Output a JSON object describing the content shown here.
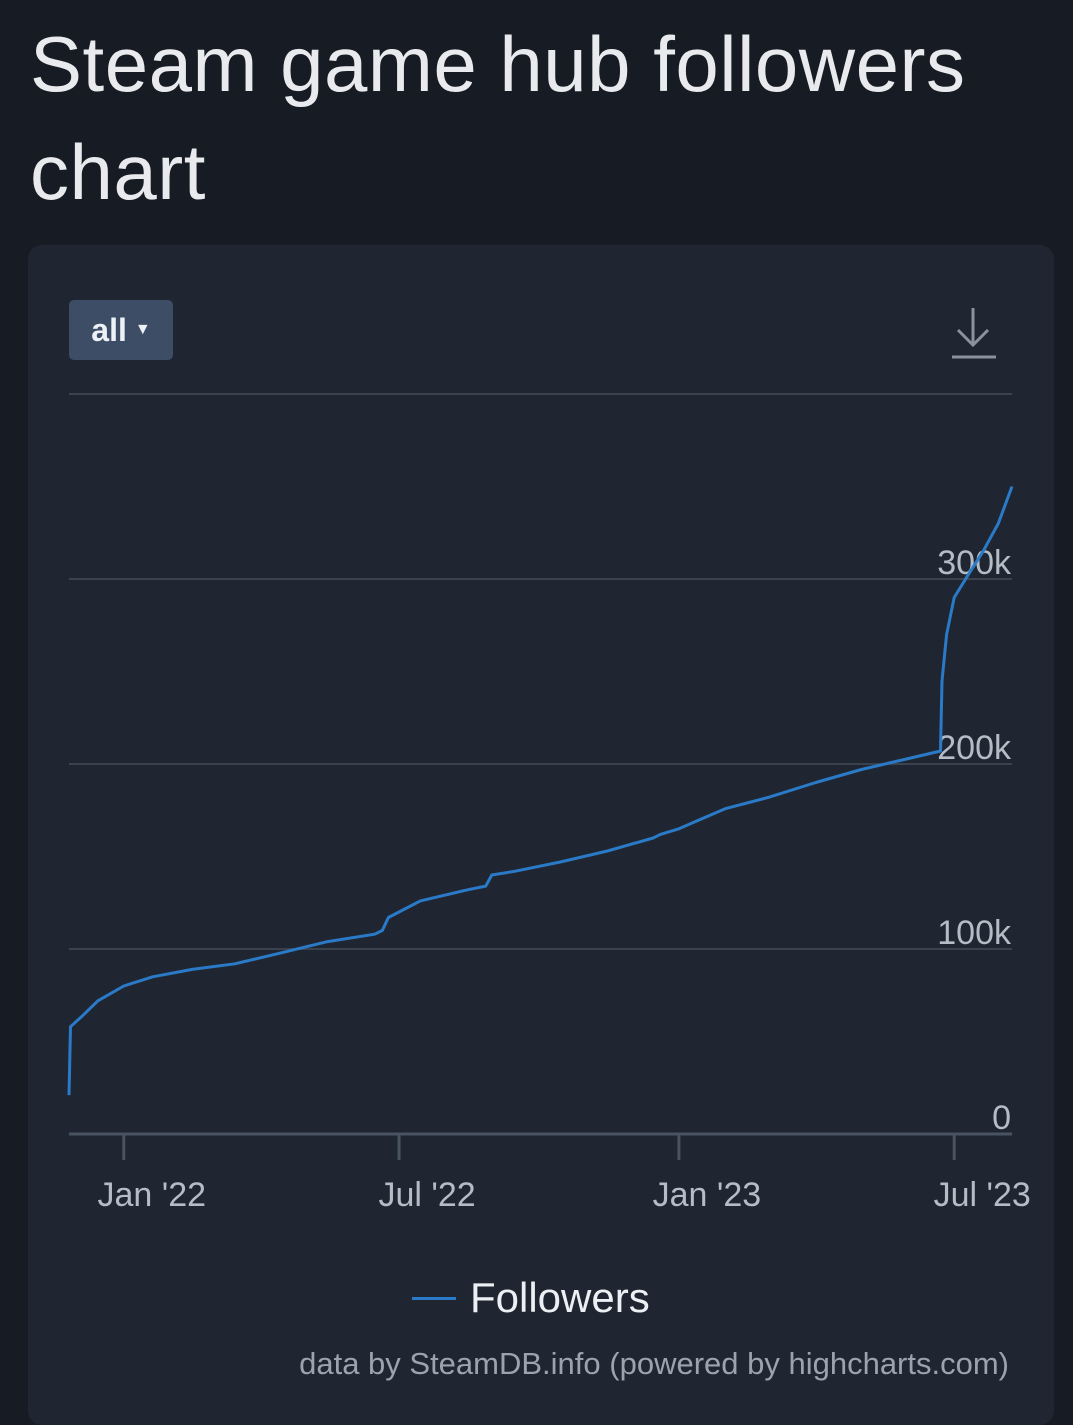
{
  "page": {
    "title": "Steam game hub followers chart"
  },
  "controls": {
    "range_label": "all",
    "download_icon": "download-icon"
  },
  "legend": {
    "label": "Followers"
  },
  "credits": "data by SteamDB.info (powered by highcharts.com)",
  "colors": {
    "background": "#161b24",
    "card": "#1f2631",
    "line": "#2a7ac8",
    "grid": "#3a424e",
    "text": "#e8eaed",
    "muted": "#9aa3ae",
    "button": "#3d4d66"
  },
  "chart_data": {
    "type": "line",
    "title": "",
    "xlabel": "",
    "ylabel": "",
    "ylim": [
      0,
      400000
    ],
    "yticks": [
      {
        "value": 0,
        "label": "0"
      },
      {
        "value": 100000,
        "label": "100k"
      },
      {
        "value": 200000,
        "label": "200k"
      },
      {
        "value": 300000,
        "label": "300k"
      }
    ],
    "xlim": [
      "2021-11-26",
      "2023-08-08"
    ],
    "xticks": [
      {
        "date": "2022-01-01",
        "label": "Jan '22"
      },
      {
        "date": "2022-07-01",
        "label": "Jul '22"
      },
      {
        "date": "2023-01-01",
        "label": "Jan '23"
      },
      {
        "date": "2023-07-01",
        "label": "Jul '23"
      }
    ],
    "grid": true,
    "legend_position": "bottom-center",
    "series": [
      {
        "name": "Followers",
        "points": [
          [
            "2021-11-26",
            21000
          ],
          [
            "2021-11-27",
            58000
          ],
          [
            "2021-12-05",
            64000
          ],
          [
            "2021-12-15",
            72000
          ],
          [
            "2022-01-01",
            80000
          ],
          [
            "2022-01-20",
            85000
          ],
          [
            "2022-02-15",
            89000
          ],
          [
            "2022-03-15",
            92000
          ],
          [
            "2022-04-15",
            98000
          ],
          [
            "2022-05-15",
            104000
          ],
          [
            "2022-06-15",
            108000
          ],
          [
            "2022-06-20",
            110000
          ],
          [
            "2022-06-24",
            117000
          ],
          [
            "2022-07-01",
            120000
          ],
          [
            "2022-07-15",
            126000
          ],
          [
            "2022-08-15",
            132000
          ],
          [
            "2022-08-27",
            134000
          ],
          [
            "2022-08-31",
            140000
          ],
          [
            "2022-09-15",
            142000
          ],
          [
            "2022-10-15",
            147000
          ],
          [
            "2022-11-15",
            153000
          ],
          [
            "2022-12-15",
            160000
          ],
          [
            "2022-12-20",
            162000
          ],
          [
            "2023-01-01",
            165000
          ],
          [
            "2023-01-15",
            170000
          ],
          [
            "2023-02-01",
            176000
          ],
          [
            "2023-03-01",
            182000
          ],
          [
            "2023-04-01",
            190000
          ],
          [
            "2023-05-01",
            197000
          ],
          [
            "2023-06-01",
            203000
          ],
          [
            "2023-06-22",
            207000
          ],
          [
            "2023-06-23",
            245000
          ],
          [
            "2023-06-26",
            270000
          ],
          [
            "2023-07-01",
            290000
          ],
          [
            "2023-07-10",
            302000
          ],
          [
            "2023-07-20",
            315000
          ],
          [
            "2023-07-30",
            330000
          ],
          [
            "2023-08-08",
            350000
          ]
        ]
      }
    ]
  }
}
